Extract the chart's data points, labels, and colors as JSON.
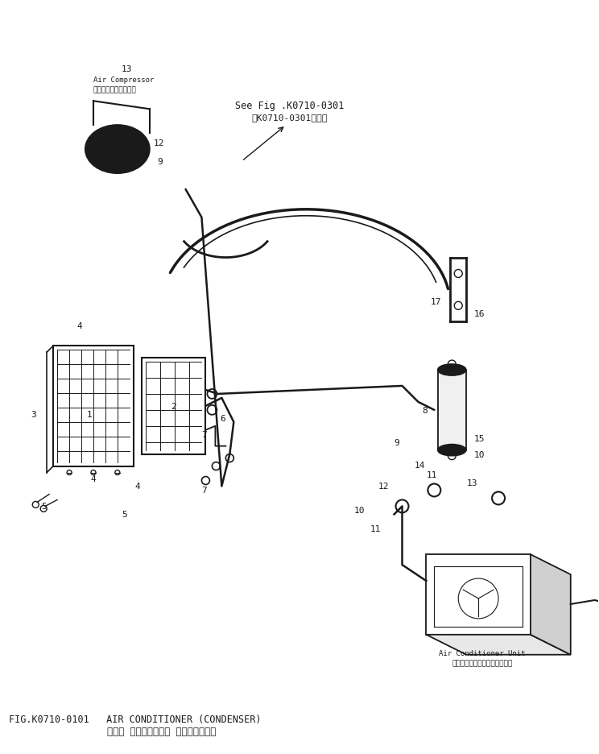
{
  "title_jp": "エアー コンディショナ （コンデンサ）",
  "title_en": "FIG.K0710-0101   AIR CONDITIONER (CONDENSER)",
  "bg_color": "#ffffff",
  "line_color": "#1a1a1a",
  "text_color": "#1a1a1a",
  "ac_unit_label_jp": "エアーコンディショナユニット",
  "ac_unit_label_en": "Air Conditioner Unit",
  "compressor_label_jp": "エアーコンプレッサ・",
  "compressor_label_en": "Air Compressor",
  "see_fig_jp": "第K0710-0301図参照",
  "see_fig_en": "See Fig .K0710-0301",
  "figsize": [
    7.44,
    9.37
  ],
  "dpi": 100
}
